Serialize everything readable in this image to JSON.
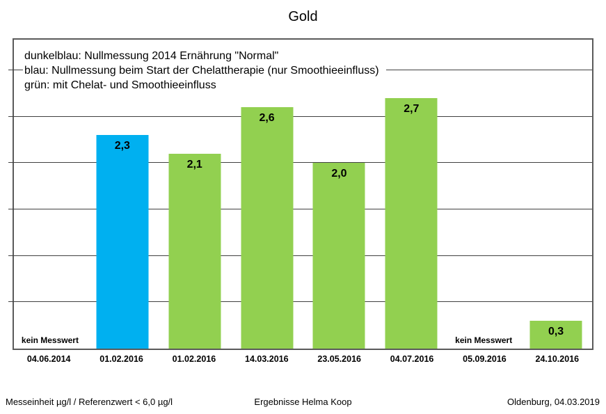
{
  "page": {
    "title": "Gold"
  },
  "footer": {
    "left": "Messeinheit µg/l / Referenzwert < 6,0 µg/l",
    "center": "Ergebnisse Helma Koop",
    "right": "Oldenburg, 04.03.2019"
  },
  "colors": {
    "bar_blue": "#00b0f0",
    "bar_green": "#92d050",
    "grid": "#404040",
    "plot_border": "#5a5a5a",
    "background": "#ffffff",
    "text": "#000000"
  },
  "chart_data": {
    "type": "bar",
    "title": "Gold",
    "categories": [
      "04.06.2014",
      "01.02.2016",
      "01.02.2016",
      "14.03.2016",
      "23.05.2016",
      "04.07.2016",
      "05.09.2016",
      "24.10.2016"
    ],
    "values": [
      null,
      2.3,
      2.1,
      2.6,
      2.0,
      2.7,
      null,
      0.3
    ],
    "bar_labels": [
      "kein Messwert",
      "2,3",
      "2,1",
      "2,6",
      "2,0",
      "2,7",
      "kein Messwert",
      "0,3"
    ],
    "bar_colors": [
      null,
      "#00b0f0",
      "#92d050",
      "#92d050",
      "#92d050",
      "#92d050",
      null,
      "#92d050"
    ],
    "no_data_text": "kein Messwert",
    "xlabel": "",
    "ylabel": "",
    "ylim": [
      0,
      3.33
    ],
    "gridlines": [
      0.5,
      1.0,
      1.5,
      2.0,
      2.5,
      3.0
    ],
    "grid": true,
    "y_tick_labels_visible": false,
    "legend_position": "inside-top-left",
    "legend": {
      "lines": [
        "dunkelblau: Nullmessung 2014 Ernährung \"Normal\"",
        "blau: Nullmessung beim Start der Chelattherapie (nur Smoothieeinfluss)",
        "grün: mit Chelat- und Smoothieeinfluss"
      ]
    }
  }
}
